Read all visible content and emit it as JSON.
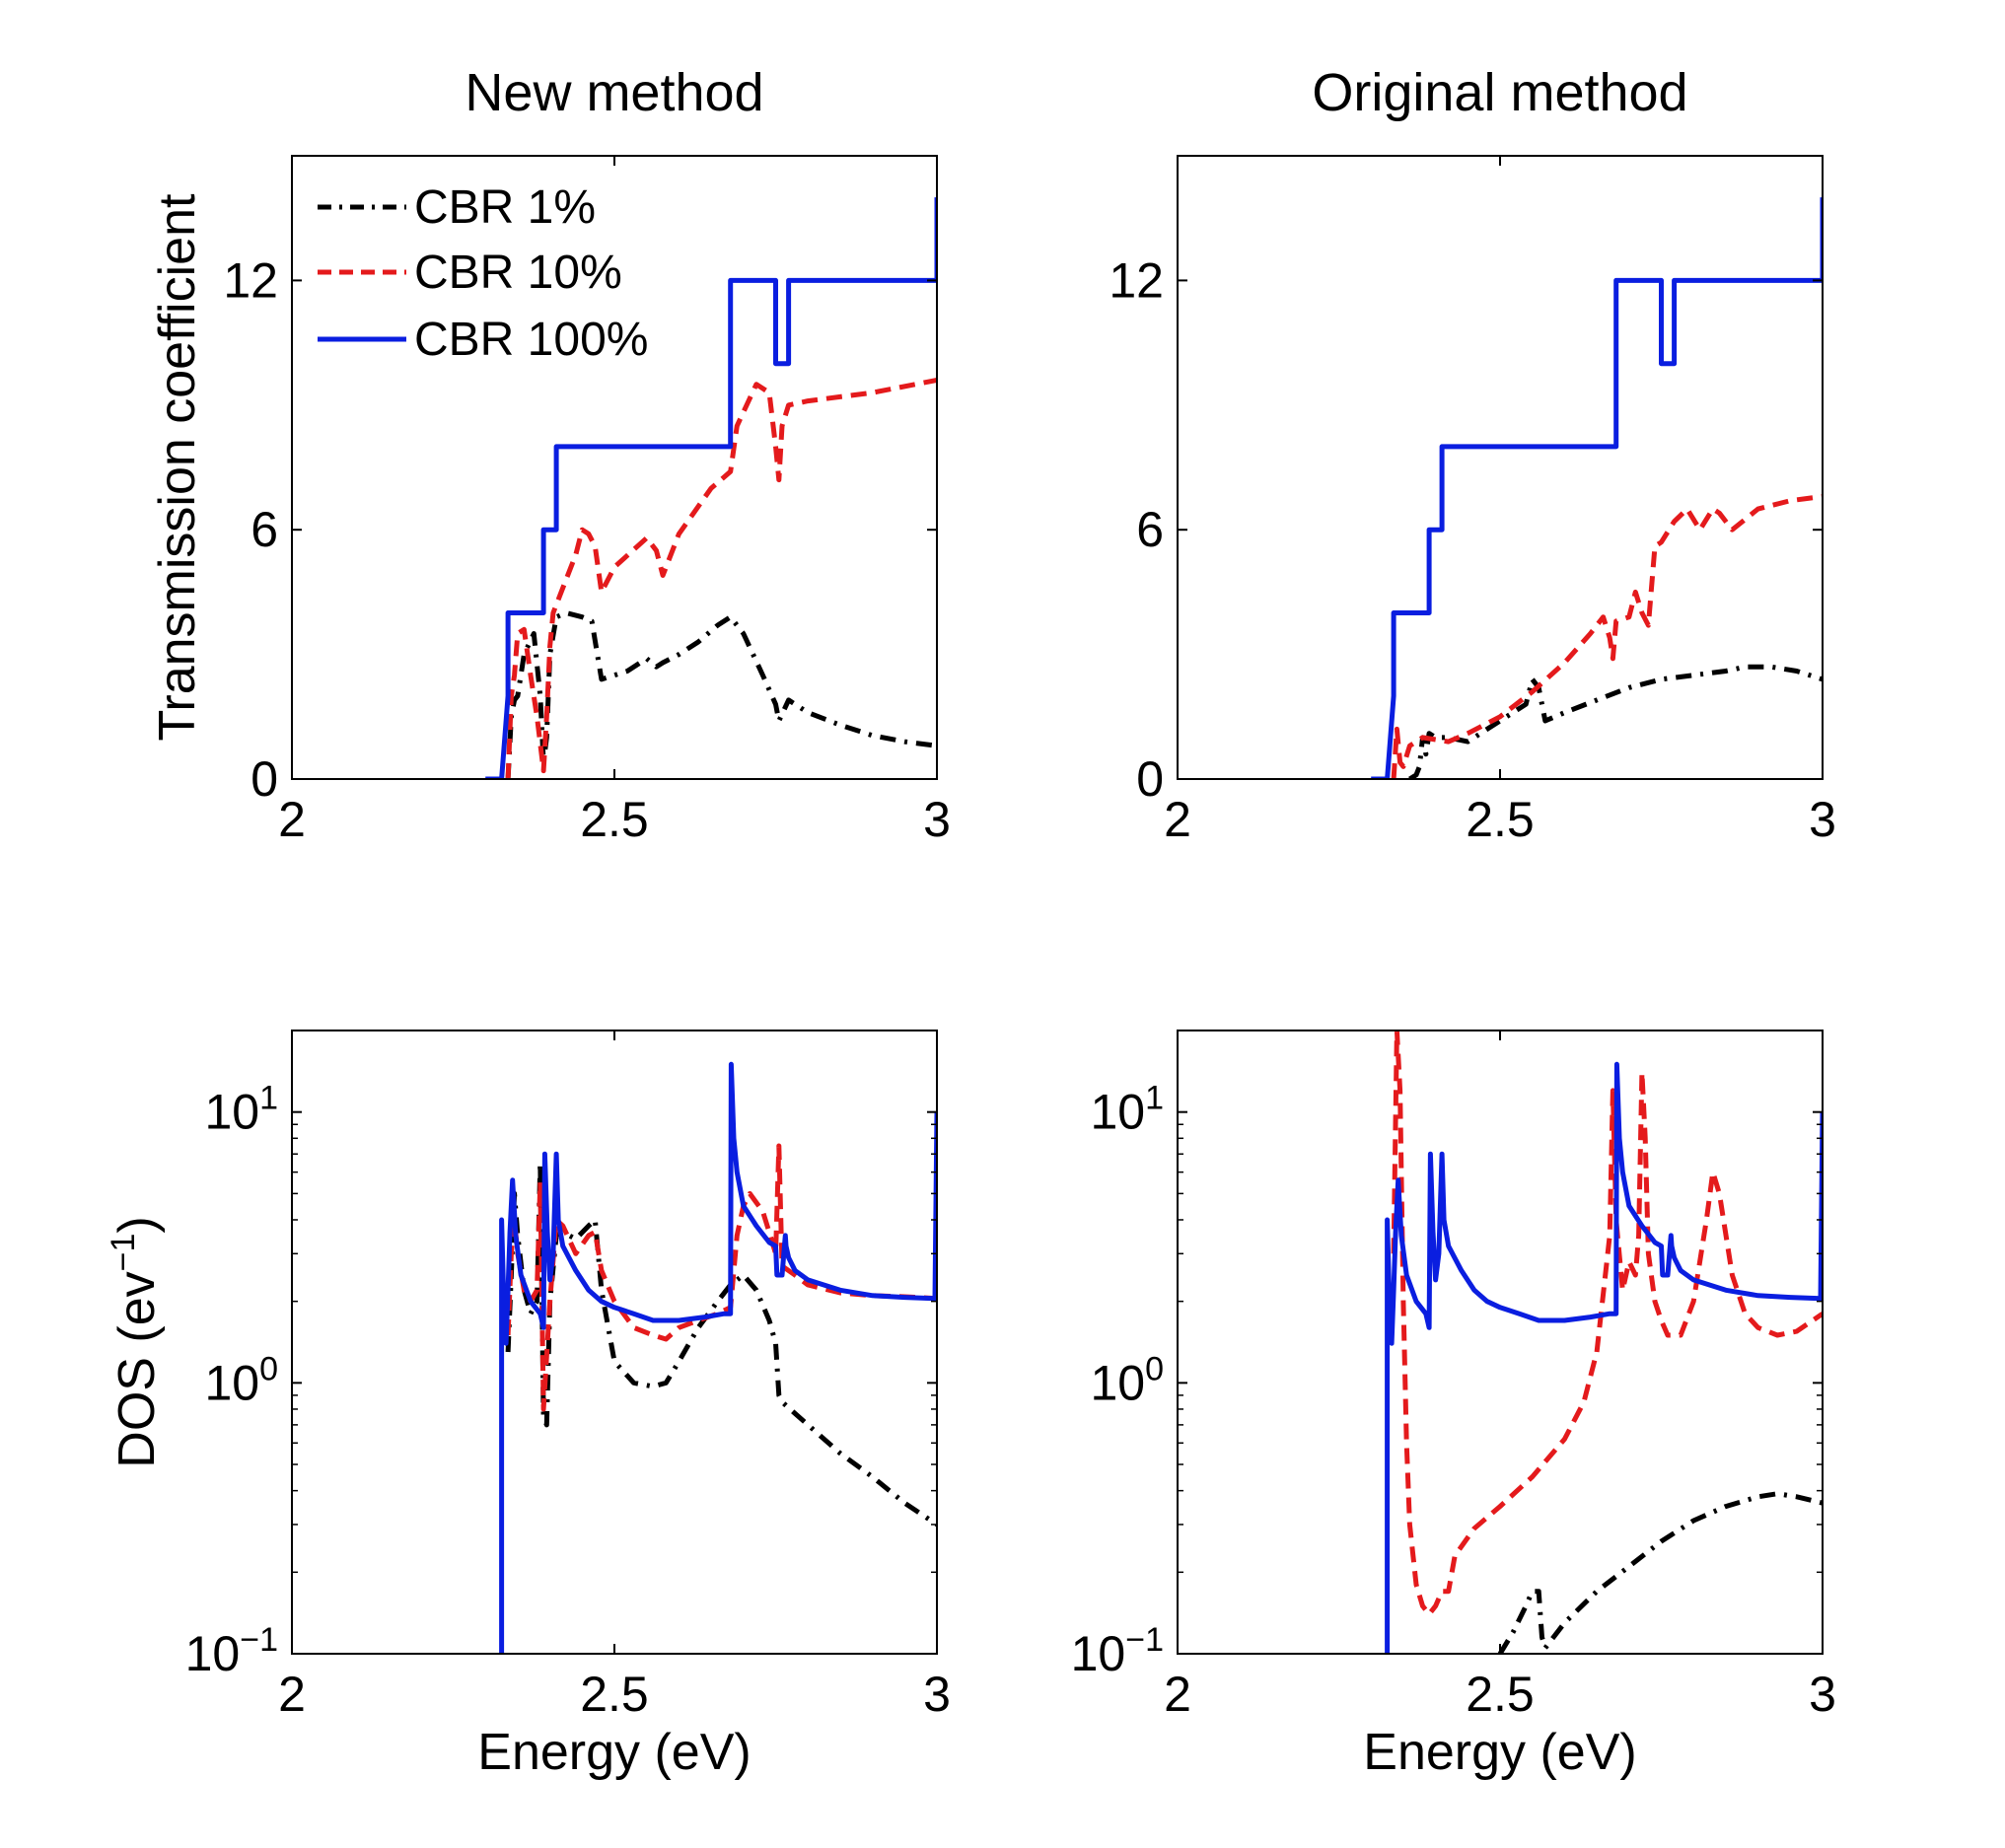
{
  "chart_data": [
    {
      "id": "new-transmission",
      "type": "line",
      "title": "New method",
      "xlabel": "",
      "ylabel": "Transmission coefficient",
      "xlim": [
        2,
        3
      ],
      "ylim": [
        0,
        15
      ],
      "yscale": "linear",
      "xticks": [
        {
          "value": 2,
          "label": "2"
        },
        {
          "value": 2.5,
          "label": "2.5"
        },
        {
          "value": 3,
          "label": "3"
        }
      ],
      "yticks": [
        {
          "value": 0,
          "label": "0"
        },
        {
          "value": 6,
          "label": "6"
        },
        {
          "value": 12,
          "label": "12"
        }
      ],
      "legend": {
        "placement": "top-left",
        "entries": [
          "CBR 1%",
          "CBR 10%",
          "CBR 100%"
        ]
      },
      "series": [
        {
          "name": "CBR 1%",
          "color": "#000000",
          "style": "dashdot",
          "x": [
            2.335,
            2.34,
            2.345,
            2.35,
            2.36,
            2.375,
            2.385,
            2.39,
            2.395,
            2.4,
            2.41,
            2.425,
            2.45,
            2.465,
            2.48,
            2.52,
            2.55,
            2.565,
            2.575,
            2.6,
            2.63,
            2.66,
            2.68,
            2.7,
            2.73,
            2.75,
            2.755,
            2.77,
            2.8,
            2.85,
            2.9,
            2.95,
            3.0
          ],
          "y": [
            0,
            1.5,
            1.9,
            2.0,
            3.0,
            3.5,
            2.0,
            0.4,
            1.0,
            3.0,
            3.9,
            4.0,
            3.9,
            3.8,
            2.4,
            2.6,
            2.9,
            2.7,
            2.8,
            3.0,
            3.3,
            3.7,
            3.9,
            3.5,
            2.5,
            1.8,
            1.4,
            1.9,
            1.6,
            1.3,
            1.05,
            0.9,
            0.8
          ]
        },
        {
          "name": "CBR 10%",
          "color": "#e41a1c",
          "style": "dashed",
          "x": [
            2.335,
            2.34,
            2.345,
            2.35,
            2.36,
            2.37,
            2.38,
            2.39,
            2.395,
            2.4,
            2.405,
            2.42,
            2.44,
            2.45,
            2.46,
            2.47,
            2.48,
            2.5,
            2.55,
            2.565,
            2.575,
            2.6,
            2.65,
            2.68,
            2.69,
            2.72,
            2.74,
            2.75,
            2.755,
            2.76,
            2.77,
            2.8,
            2.9,
            3.0
          ],
          "y": [
            0,
            2.0,
            2.5,
            3.5,
            3.6,
            2.5,
            1.5,
            0.2,
            1.5,
            3.2,
            4.0,
            4.6,
            5.4,
            6.0,
            5.9,
            5.6,
            4.5,
            5.1,
            5.8,
            5.5,
            4.9,
            5.9,
            7.0,
            7.4,
            8.5,
            9.5,
            9.3,
            8.0,
            7.2,
            8.5,
            9.0,
            9.1,
            9.3,
            9.6
          ]
        },
        {
          "name": "CBR 100%",
          "color": "#0a1ee0",
          "style": "solid",
          "x": [
            2.3,
            2.325,
            2.325,
            2.335,
            2.335,
            2.345,
            2.345,
            2.39,
            2.39,
            2.41,
            2.41,
            2.42,
            2.42,
            2.48,
            2.5,
            2.68,
            2.68,
            2.75,
            2.75,
            2.77,
            2.77,
            2.8,
            2.9,
            3.0,
            3.0
          ],
          "y": [
            0,
            0,
            0,
            2.0,
            4.0,
            4.0,
            4.0,
            4.0,
            6.0,
            6.0,
            8.0,
            8.0,
            8.0,
            8.0,
            8.0,
            8.0,
            12.0,
            12.0,
            10.0,
            10.0,
            12.0,
            12.0,
            12.0,
            12.0,
            14.0
          ]
        }
      ]
    },
    {
      "id": "original-transmission",
      "type": "line",
      "title": "Original method",
      "xlabel": "",
      "ylabel": "",
      "xlim": [
        2,
        3
      ],
      "ylim": [
        0,
        15
      ],
      "yscale": "linear",
      "xticks": [
        {
          "value": 2,
          "label": "2"
        },
        {
          "value": 2.5,
          "label": "2.5"
        },
        {
          "value": 3,
          "label": "3"
        }
      ],
      "yticks": [
        {
          "value": 0,
          "label": "0"
        },
        {
          "value": 6,
          "label": "6"
        },
        {
          "value": 12,
          "label": "12"
        }
      ],
      "series": [
        {
          "name": "CBR 1%",
          "color": "#000000",
          "style": "dashdot",
          "x": [
            2.36,
            2.37,
            2.375,
            2.38,
            2.385,
            2.39,
            2.4,
            2.42,
            2.45,
            2.48,
            2.51,
            2.54,
            2.55,
            2.56,
            2.57,
            2.6,
            2.65,
            2.7,
            2.75,
            2.8,
            2.85,
            2.88,
            2.92,
            2.96,
            3.0
          ],
          "y": [
            0,
            0.1,
            0.3,
            1.0,
            0.6,
            1.1,
            1.0,
            1.0,
            0.9,
            1.2,
            1.5,
            1.8,
            2.4,
            2.2,
            1.4,
            1.6,
            1.9,
            2.2,
            2.4,
            2.5,
            2.6,
            2.7,
            2.7,
            2.6,
            2.4
          ]
        },
        {
          "name": "CBR 10%",
          "color": "#e41a1c",
          "style": "dashed",
          "x": [
            2.335,
            2.34,
            2.345,
            2.35,
            2.36,
            2.38,
            2.42,
            2.45,
            2.5,
            2.55,
            2.6,
            2.64,
            2.66,
            2.67,
            2.675,
            2.68,
            2.7,
            2.71,
            2.72,
            2.73,
            2.74,
            2.75,
            2.77,
            2.79,
            2.81,
            2.83,
            2.84,
            2.86,
            2.9,
            2.95,
            3.0
          ],
          "y": [
            0,
            1.2,
            0.4,
            0.3,
            0.8,
            1.0,
            0.9,
            1.1,
            1.5,
            2.1,
            2.8,
            3.5,
            3.9,
            3.4,
            2.9,
            3.8,
            3.9,
            4.5,
            4.0,
            3.7,
            5.6,
            5.7,
            6.2,
            6.5,
            6.0,
            6.5,
            6.4,
            6.0,
            6.5,
            6.7,
            6.8
          ]
        },
        {
          "name": "CBR 100%",
          "color": "#0a1ee0",
          "style": "solid",
          "x": [
            2.3,
            2.325,
            2.325,
            2.335,
            2.335,
            2.345,
            2.345,
            2.39,
            2.39,
            2.41,
            2.41,
            2.42,
            2.42,
            2.48,
            2.5,
            2.68,
            2.68,
            2.75,
            2.75,
            2.77,
            2.77,
            2.8,
            2.9,
            3.0,
            3.0
          ],
          "y": [
            0,
            0,
            0,
            2.0,
            4.0,
            4.0,
            4.0,
            4.0,
            6.0,
            6.0,
            8.0,
            8.0,
            8.0,
            8.0,
            8.0,
            8.0,
            12.0,
            12.0,
            10.0,
            10.0,
            12.0,
            12.0,
            12.0,
            12.0,
            14.0
          ]
        }
      ]
    },
    {
      "id": "new-dos",
      "type": "line",
      "title": "",
      "xlabel": "Energy (eV)",
      "ylabel": "DOS (ev",
      "ylabel_superscript": "−1",
      "ylabel_suffix": ")",
      "xlim": [
        2,
        3
      ],
      "ylim": [
        0.1,
        20
      ],
      "yscale": "log",
      "xticks": [
        {
          "value": 2,
          "label": "2"
        },
        {
          "value": 2.5,
          "label": "2.5"
        },
        {
          "value": 3,
          "label": "3"
        }
      ],
      "yticks": [
        {
          "value": 0.1,
          "base": "10",
          "exp": "−1"
        },
        {
          "value": 1,
          "base": "10",
          "exp": "0"
        },
        {
          "value": 10,
          "base": "10",
          "exp": "1"
        }
      ],
      "series": [
        {
          "name": "CBR 1%",
          "color": "#000000",
          "style": "dashdot",
          "x": [
            2.335,
            2.34,
            2.345,
            2.35,
            2.36,
            2.37,
            2.38,
            2.385,
            2.39,
            2.395,
            2.4,
            2.41,
            2.42,
            2.44,
            2.46,
            2.47,
            2.48,
            2.5,
            2.53,
            2.56,
            2.58,
            2.6,
            2.63,
            2.66,
            2.68,
            2.7,
            2.72,
            2.74,
            2.75,
            2.755,
            2.76,
            2.8,
            2.85,
            2.9,
            2.95,
            3.0
          ],
          "y": [
            1.3,
            2.5,
            5.0,
            3.5,
            2.2,
            1.8,
            2.0,
            6.5,
            0.75,
            0.7,
            2.0,
            3.5,
            3.6,
            3.4,
            3.8,
            4.0,
            2.2,
            1.2,
            1.0,
            0.97,
            1.0,
            1.2,
            1.6,
            2.0,
            2.3,
            2.5,
            2.2,
            1.7,
            1.4,
            0.9,
            0.85,
            0.7,
            0.55,
            0.45,
            0.36,
            0.3
          ]
        },
        {
          "name": "CBR 10%",
          "color": "#e41a1c",
          "style": "dashed",
          "x": [
            2.335,
            2.34,
            2.345,
            2.35,
            2.36,
            2.37,
            2.38,
            2.385,
            2.39,
            2.4,
            2.41,
            2.42,
            2.44,
            2.46,
            2.47,
            2.48,
            2.5,
            2.53,
            2.56,
            2.58,
            2.6,
            2.63,
            2.66,
            2.68,
            2.69,
            2.7,
            2.71,
            2.73,
            2.74,
            2.75,
            2.755,
            2.76,
            2.78,
            2.8,
            2.85,
            2.9,
            2.95,
            3.0
          ],
          "y": [
            1.5,
            3.0,
            4.0,
            3.0,
            2.2,
            2.0,
            2.2,
            5.5,
            0.8,
            2.0,
            4.0,
            3.8,
            3.0,
            3.5,
            3.6,
            2.6,
            2.0,
            1.6,
            1.5,
            1.45,
            1.6,
            1.7,
            1.8,
            1.9,
            3.5,
            4.5,
            5.0,
            4.3,
            3.6,
            3.0,
            7.5,
            2.7,
            2.5,
            2.3,
            2.15,
            2.1,
            2.08,
            2.05
          ]
        },
        {
          "name": "CBR 100%",
          "color": "#0a1ee0",
          "style": "solid",
          "x": [
            2.325,
            2.325,
            2.328,
            2.332,
            2.335,
            2.338,
            2.342,
            2.347,
            2.355,
            2.37,
            2.385,
            2.39,
            2.392,
            2.396,
            2.4,
            2.405,
            2.41,
            2.413,
            2.42,
            2.44,
            2.46,
            2.48,
            2.5,
            2.53,
            2.56,
            2.6,
            2.64,
            2.67,
            2.68,
            2.681,
            2.685,
            2.69,
            2.7,
            2.72,
            2.74,
            2.75,
            2.752,
            2.76,
            2.765,
            2.766,
            2.77,
            2.78,
            2.8,
            2.85,
            2.9,
            2.95,
            2.997,
            3.0
          ],
          "y": [
            0.1,
            4.0,
            2.2,
            1.4,
            2.2,
            3.6,
            5.6,
            3.5,
            2.5,
            2.0,
            1.8,
            1.6,
            7.0,
            3.6,
            2.4,
            3.0,
            7.0,
            4.0,
            3.2,
            2.6,
            2.2,
            2.0,
            1.9,
            1.8,
            1.7,
            1.7,
            1.75,
            1.8,
            1.8,
            15.0,
            8.0,
            6.0,
            4.5,
            3.8,
            3.3,
            3.2,
            2.5,
            2.5,
            3.5,
            3.2,
            2.9,
            2.6,
            2.4,
            2.2,
            2.1,
            2.07,
            2.05,
            10.0
          ]
        }
      ]
    },
    {
      "id": "original-dos",
      "type": "line",
      "title": "",
      "xlabel": "Energy (eV)",
      "ylabel": "",
      "xlim": [
        2,
        3
      ],
      "ylim": [
        0.1,
        20
      ],
      "yscale": "log",
      "xticks": [
        {
          "value": 2,
          "label": "2"
        },
        {
          "value": 2.5,
          "label": "2.5"
        },
        {
          "value": 3,
          "label": "3"
        }
      ],
      "yticks": [
        {
          "value": 0.1,
          "base": "10",
          "exp": "−1"
        },
        {
          "value": 1,
          "base": "10",
          "exp": "0"
        },
        {
          "value": 10,
          "base": "10",
          "exp": "1"
        }
      ],
      "series": [
        {
          "name": "CBR 1%",
          "color": "#000000",
          "style": "dashdot",
          "x": [
            2.5,
            2.52,
            2.54,
            2.55,
            2.56,
            2.565,
            2.57,
            2.6,
            2.65,
            2.7,
            2.75,
            2.8,
            2.85,
            2.9,
            2.93,
            2.96,
            3.0
          ],
          "y": [
            0.1,
            0.12,
            0.15,
            0.17,
            0.17,
            0.115,
            0.105,
            0.13,
            0.17,
            0.21,
            0.26,
            0.31,
            0.35,
            0.38,
            0.39,
            0.38,
            0.36
          ]
        },
        {
          "name": "CBR 10%",
          "color": "#e41a1c",
          "style": "dashed",
          "x": [
            2.335,
            2.34,
            2.345,
            2.35,
            2.355,
            2.36,
            2.37,
            2.38,
            2.39,
            2.4,
            2.41,
            2.42,
            2.43,
            2.46,
            2.5,
            2.55,
            2.6,
            2.63,
            2.65,
            2.67,
            2.675,
            2.68,
            2.69,
            2.7,
            2.71,
            2.715,
            2.72,
            2.725,
            2.73,
            2.74,
            2.75,
            2.76,
            2.78,
            2.8,
            2.82,
            2.83,
            2.84,
            2.86,
            2.88,
            2.9,
            2.93,
            2.96,
            3.0
          ],
          "y": [
            3.0,
            20,
            12.0,
            2.0,
            0.6,
            0.3,
            0.18,
            0.15,
            0.14,
            0.15,
            0.17,
            0.17,
            0.23,
            0.29,
            0.35,
            0.45,
            0.62,
            0.85,
            1.3,
            3.5,
            12.0,
            4.0,
            2.2,
            2.8,
            2.5,
            3.5,
            14.0,
            8.0,
            3.0,
            2.0,
            1.7,
            1.5,
            1.5,
            2.0,
            4.0,
            6.0,
            5.0,
            2.5,
            1.8,
            1.6,
            1.5,
            1.55,
            1.8
          ]
        },
        {
          "name": "CBR 100%",
          "color": "#0a1ee0",
          "style": "solid",
          "x": [
            2.325,
            2.325,
            2.328,
            2.332,
            2.335,
            2.338,
            2.342,
            2.347,
            2.355,
            2.37,
            2.385,
            2.39,
            2.392,
            2.396,
            2.4,
            2.405,
            2.41,
            2.413,
            2.42,
            2.44,
            2.46,
            2.48,
            2.5,
            2.53,
            2.56,
            2.6,
            2.64,
            2.67,
            2.68,
            2.681,
            2.685,
            2.69,
            2.7,
            2.72,
            2.74,
            2.75,
            2.752,
            2.76,
            2.765,
            2.766,
            2.77,
            2.78,
            2.8,
            2.85,
            2.9,
            2.95,
            2.997,
            3.0
          ],
          "y": [
            0.1,
            4.0,
            2.2,
            1.4,
            2.2,
            3.6,
            5.6,
            3.5,
            2.5,
            2.0,
            1.8,
            1.6,
            7.0,
            3.6,
            2.4,
            3.0,
            7.0,
            4.0,
            3.2,
            2.6,
            2.2,
            2.0,
            1.9,
            1.8,
            1.7,
            1.7,
            1.75,
            1.8,
            1.8,
            15.0,
            8.0,
            6.0,
            4.5,
            3.8,
            3.3,
            3.2,
            2.5,
            2.5,
            3.5,
            3.2,
            2.9,
            2.6,
            2.4,
            2.2,
            2.1,
            2.07,
            2.05,
            10.0
          ]
        }
      ]
    }
  ]
}
